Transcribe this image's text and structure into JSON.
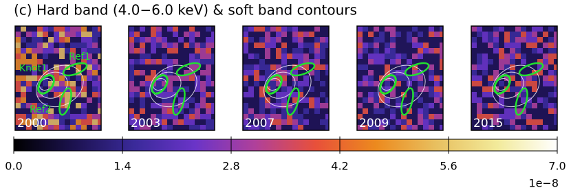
{
  "chart_data": {
    "type": "heatmap",
    "title": "(c) Hard band (4.0−6.0 keV) & soft band contours",
    "panels": [
      "2000",
      "2003",
      "2007",
      "2009",
      "2015"
    ],
    "annotations": [
      "Knot1",
      "Ref1",
      "Ref2"
    ],
    "colormap": [
      "#000000",
      "#1c1250",
      "#3a2a9a",
      "#6a34c8",
      "#b0409a",
      "#e8503a",
      "#ec8a1e",
      "#e8c060",
      "#f2ea9a",
      "#ffffff"
    ],
    "zlim": [
      0,
      7
    ],
    "zticks": [
      {
        "value": 0,
        "label": "0.0"
      },
      1.4,
      2.8,
      4.2,
      5.6,
      {
        "value": 7,
        "label": "7.0"
      }
    ],
    "z_offset_label": "1e−8"
  }
}
